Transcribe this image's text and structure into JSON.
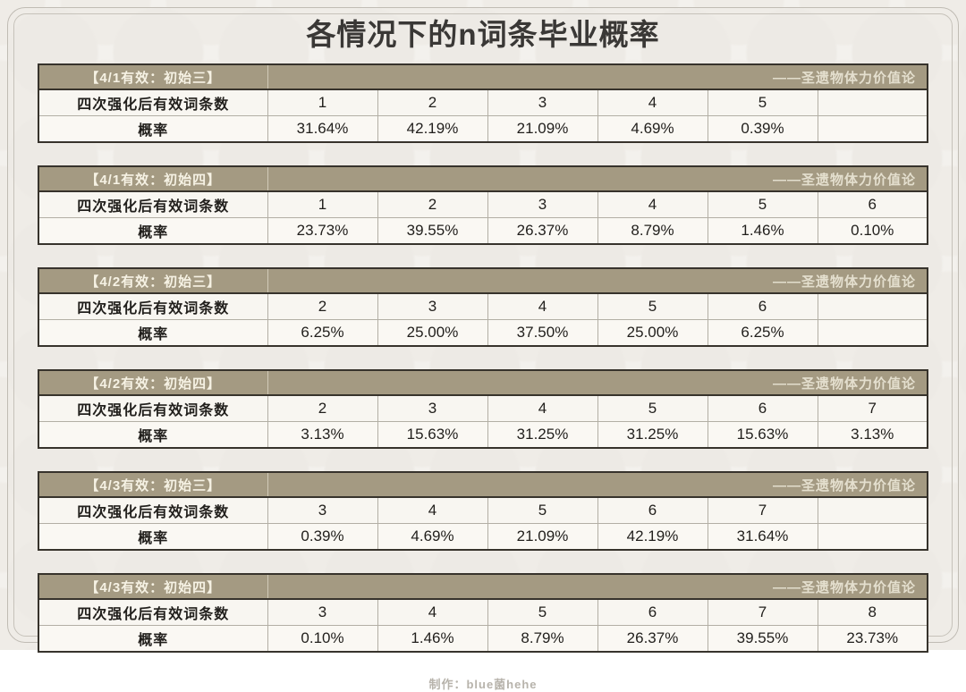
{
  "page": {
    "title": "各情况下的n词条毕业概率",
    "footer": "制作：blue菌hehe"
  },
  "table_common": {
    "row1_label": "四次强化后有效词条数",
    "row2_label": "概率",
    "attribution": "——圣遗物体力价值论"
  },
  "colors": {
    "header_bar": "#a49a82",
    "header_text": "#f6f2e4",
    "table_border": "#37332c",
    "cell_bg": "#f8f6f1",
    "page_bg": "#f3f1ed",
    "title_text": "#3a3836",
    "footer_text": "#b7b3ab"
  },
  "tables": [
    {
      "heading": "【4/1有效：初始三】",
      "counts": [
        "1",
        "2",
        "3",
        "4",
        "5",
        ""
      ],
      "probs": [
        "31.64%",
        "42.19%",
        "21.09%",
        "4.69%",
        "0.39%",
        ""
      ]
    },
    {
      "heading": "【4/1有效：初始四】",
      "counts": [
        "1",
        "2",
        "3",
        "4",
        "5",
        "6"
      ],
      "probs": [
        "23.73%",
        "39.55%",
        "26.37%",
        "8.79%",
        "1.46%",
        "0.10%"
      ]
    },
    {
      "heading": "【4/2有效：初始三】",
      "counts": [
        "2",
        "3",
        "4",
        "5",
        "6",
        ""
      ],
      "probs": [
        "6.25%",
        "25.00%",
        "37.50%",
        "25.00%",
        "6.25%",
        ""
      ]
    },
    {
      "heading": "【4/2有效：初始四】",
      "counts": [
        "2",
        "3",
        "4",
        "5",
        "6",
        "7"
      ],
      "probs": [
        "3.13%",
        "15.63%",
        "31.25%",
        "31.25%",
        "15.63%",
        "3.13%"
      ]
    },
    {
      "heading": "【4/3有效：初始三】",
      "counts": [
        "3",
        "4",
        "5",
        "6",
        "7",
        ""
      ],
      "probs": [
        "0.39%",
        "4.69%",
        "21.09%",
        "42.19%",
        "31.64%",
        ""
      ]
    },
    {
      "heading": "【4/3有效：初始四】",
      "counts": [
        "3",
        "4",
        "5",
        "6",
        "7",
        "8"
      ],
      "probs": [
        "0.10%",
        "1.46%",
        "8.79%",
        "26.37%",
        "39.55%",
        "23.73%"
      ]
    }
  ]
}
